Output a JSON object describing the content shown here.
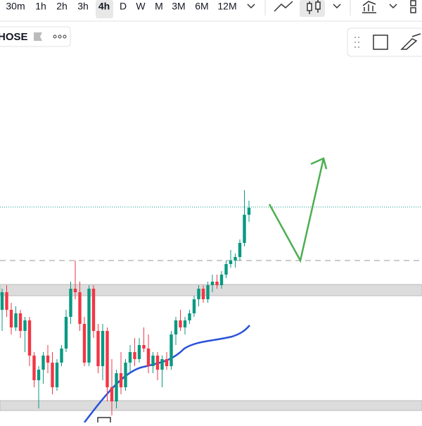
{
  "toolbar": {
    "timeframes": [
      "30m",
      "1h",
      "2h",
      "3h",
      "4h",
      "D",
      "W",
      "M",
      "3M",
      "6M",
      "12M"
    ],
    "active": "4h"
  },
  "symbol": {
    "name": "HOSE"
  },
  "chart_data": {
    "type": "candlestick",
    "up_color": "#089981",
    "down_color": "#f23645",
    "ylim": [
      0,
      570
    ],
    "open": [
      160,
      185,
      160,
      135,
      155,
      130,
      145,
      95,
      60,
      75,
      95,
      85,
      50,
      85,
      105,
      150,
      190,
      185,
      140,
      85,
      190,
      130,
      80,
      130,
      50,
      30,
      70,
      50,
      85,
      100,
      90,
      110,
      105,
      80,
      95,
      75,
      90,
      80,
      125,
      145,
      135,
      145,
      155,
      175,
      190,
      175,
      195,
      200,
      195,
      210,
      225,
      230,
      235,
      255,
      295
    ],
    "high": [
      190,
      195,
      170,
      165,
      160,
      150,
      150,
      100,
      80,
      100,
      110,
      100,
      90,
      110,
      160,
      200,
      230,
      200,
      150,
      195,
      195,
      140,
      140,
      135,
      90,
      75,
      100,
      90,
      110,
      120,
      120,
      135,
      125,
      100,
      100,
      95,
      100,
      130,
      150,
      160,
      150,
      160,
      180,
      195,
      195,
      200,
      210,
      210,
      215,
      230,
      245,
      240,
      260,
      330,
      315
    ],
    "low": [
      130,
      150,
      125,
      130,
      120,
      100,
      80,
      50,
      20,
      55,
      70,
      40,
      45,
      80,
      100,
      140,
      175,
      130,
      80,
      80,
      120,
      70,
      60,
      30,
      10,
      20,
      40,
      45,
      70,
      80,
      85,
      100,
      70,
      70,
      60,
      50,
      75,
      75,
      110,
      130,
      125,
      140,
      150,
      165,
      170,
      170,
      185,
      190,
      190,
      205,
      220,
      220,
      230,
      250,
      285
    ],
    "close": [
      185,
      160,
      135,
      155,
      130,
      145,
      95,
      60,
      75,
      95,
      85,
      50,
      85,
      105,
      150,
      190,
      185,
      140,
      85,
      190,
      130,
      80,
      130,
      50,
      30,
      70,
      50,
      85,
      100,
      90,
      110,
      105,
      80,
      95,
      75,
      90,
      80,
      125,
      145,
      135,
      145,
      155,
      175,
      190,
      175,
      195,
      200,
      195,
      210,
      225,
      230,
      235,
      255,
      295,
      305
    ]
  }
}
